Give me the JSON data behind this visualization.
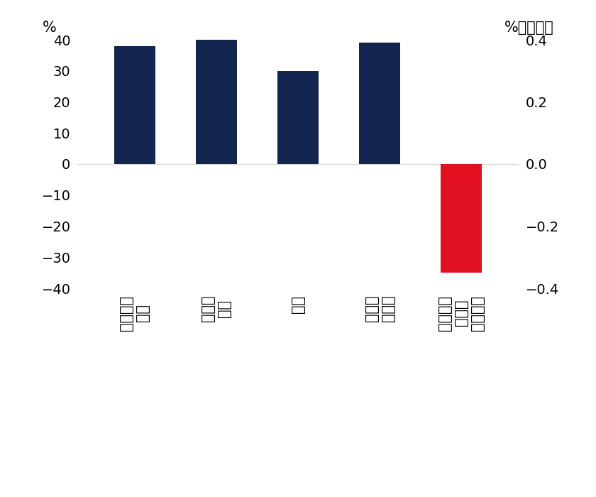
{
  "categories": [
    "一次産品\n価格",
    "エネル\nギー",
    "食料",
    "ベース\nメタル",
    "世界経済\n成長率\n（右軸）"
  ],
  "values_left": [
    38,
    42,
    30,
    39,
    null
  ],
  "values_right": [
    null,
    null,
    null,
    null,
    -0.35
  ],
  "bar_colors": [
    "#12264F",
    "#12264F",
    "#12264F",
    "#12264F",
    "#E01020"
  ],
  "ylim_left": [
    -40,
    40
  ],
  "ylim_right": [
    -0.4,
    0.4
  ],
  "yticks_left": [
    -40,
    -30,
    -20,
    -10,
    0,
    10,
    20,
    30,
    40
  ],
  "yticks_right": [
    -0.4,
    -0.2,
    0,
    0.2,
    0.4
  ],
  "ylabel_left": "%",
  "ylabel_right": "%ポイント",
  "bar_width": 0.5,
  "background_color": "#FFFFFF",
  "tick_label_fontsize": 14,
  "axis_label_fontsize": 15,
  "x_label_fontsize": 15
}
